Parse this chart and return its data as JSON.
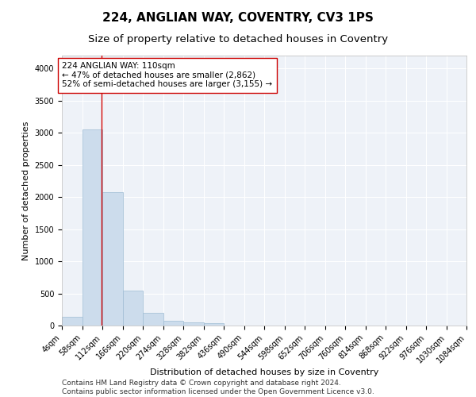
{
  "title": "224, ANGLIAN WAY, COVENTRY, CV3 1PS",
  "subtitle": "Size of property relative to detached houses in Coventry",
  "xlabel": "Distribution of detached houses by size in Coventry",
  "ylabel": "Number of detached properties",
  "bar_color": "#ccdcec",
  "bar_edgecolor": "#9fbdd4",
  "background_color": "#eef2f8",
  "grid_color": "#ffffff",
  "vline_x": 110,
  "vline_color": "#cc0000",
  "annotation_text": "224 ANGLIAN WAY: 110sqm\n← 47% of detached houses are smaller (2,862)\n52% of semi-detached houses are larger (3,155) →",
  "annotation_box_color": "#ffffff",
  "annotation_box_edgecolor": "#cc0000",
  "bin_edges": [
    4,
    58,
    112,
    166,
    220,
    274,
    328,
    382,
    436,
    490,
    544,
    598,
    652,
    706,
    760,
    814,
    868,
    922,
    976,
    1030,
    1084
  ],
  "bin_values": [
    130,
    3050,
    2075,
    545,
    200,
    75,
    50,
    40,
    0,
    0,
    0,
    0,
    0,
    0,
    0,
    0,
    0,
    0,
    0,
    0
  ],
  "ylim": [
    0,
    4200
  ],
  "yticks": [
    0,
    500,
    1000,
    1500,
    2000,
    2500,
    3000,
    3500,
    4000
  ],
  "footer_line1": "Contains HM Land Registry data © Crown copyright and database right 2024.",
  "footer_line2": "Contains public sector information licensed under the Open Government Licence v3.0.",
  "title_fontsize": 11,
  "subtitle_fontsize": 9.5,
  "axis_label_fontsize": 8,
  "tick_fontsize": 7,
  "annotation_fontsize": 7.5,
  "footer_fontsize": 6.5
}
